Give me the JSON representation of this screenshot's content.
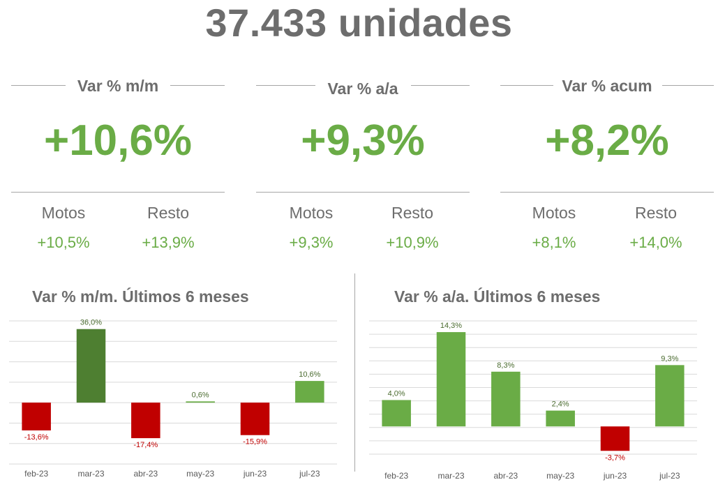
{
  "header": {
    "title": "37.433 unidades"
  },
  "kpis": [
    {
      "label": "Var % m/m",
      "value": "+10,6%",
      "sub1_label": "Motos",
      "sub1_value": "+10,5%",
      "sub2_label": "Resto",
      "sub2_value": "+13,9%"
    },
    {
      "label": "Var % a/a",
      "value": "+9,3%",
      "sub1_label": "Motos",
      "sub1_value": "+9,3%",
      "sub2_label": "Resto",
      "sub2_value": "+10,9%"
    },
    {
      "label": "Var % acum",
      "value": "+8,2%",
      "sub1_label": "Motos",
      "sub1_value": "+8,1%",
      "sub2_label": "Resto",
      "sub2_value": "+14,0%"
    }
  ],
  "colors": {
    "positive": "#6aac46",
    "positive_dark": "#4e7f31",
    "negative": "#c00000",
    "text": "#6d6d6d",
    "grid": "#d9d9d9"
  },
  "chart_data": [
    {
      "type": "bar",
      "title": "Var % m/m. Últimos 6 meses",
      "categories": [
        "feb-23",
        "mar-23",
        "abr-23",
        "may-23",
        "jun-23",
        "jul-23"
      ],
      "values": [
        -13.6,
        36.0,
        -17.4,
        0.6,
        -15.9,
        10.6
      ],
      "value_labels": [
        "-13,6%",
        "36,0%",
        "-17,4%",
        "0,6%",
        "-15,9%",
        "10,6%"
      ],
      "bar_colors": [
        "#c00000",
        "#4e7f31",
        "#c00000",
        "#6aac46",
        "#c00000",
        "#6aac46"
      ],
      "ylim": [
        -30,
        40
      ],
      "grid": true
    },
    {
      "type": "bar",
      "title": "Var % a/a. Últimos 6 meses",
      "categories": [
        "feb-23",
        "mar-23",
        "abr-23",
        "may-23",
        "jun-23",
        "jul-23"
      ],
      "values": [
        4.0,
        14.3,
        8.3,
        2.4,
        -3.7,
        9.3
      ],
      "value_labels": [
        "4,0%",
        "14,3%",
        "8,3%",
        "2,4%",
        "-3,7%",
        "9,3%"
      ],
      "bar_colors": [
        "#6aac46",
        "#6aac46",
        "#6aac46",
        "#6aac46",
        "#c00000",
        "#6aac46"
      ],
      "ylim": [
        -6,
        16
      ],
      "grid": true
    }
  ]
}
